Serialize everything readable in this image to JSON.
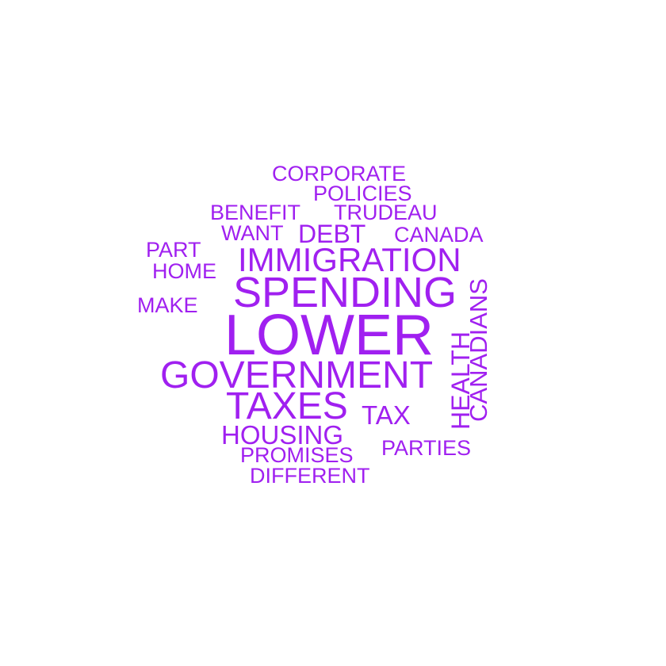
{
  "word_cloud": {
    "color": "#a020f0",
    "words": {
      "corporate": "CORPORATE",
      "policies": "POLICIES",
      "benefit": "BENEFIT",
      "trudeau": "TRUDEAU",
      "want": "WANT",
      "debt": "DEBT",
      "canada": "CANADA",
      "part": "PART",
      "home": "HOME",
      "immigration": "IMMIGRATION",
      "spending": "SPENDING",
      "make": "MAKE",
      "lower": "LOWER",
      "government": "GOVERNMENT",
      "taxes": "TAXES",
      "tax": "TAX",
      "housing": "HOUSING",
      "promises": "PROMISES",
      "parties": "PARTIES",
      "different": "DIFFERENT",
      "health": "HEALTH",
      "canadians": "CANADIANS"
    }
  }
}
